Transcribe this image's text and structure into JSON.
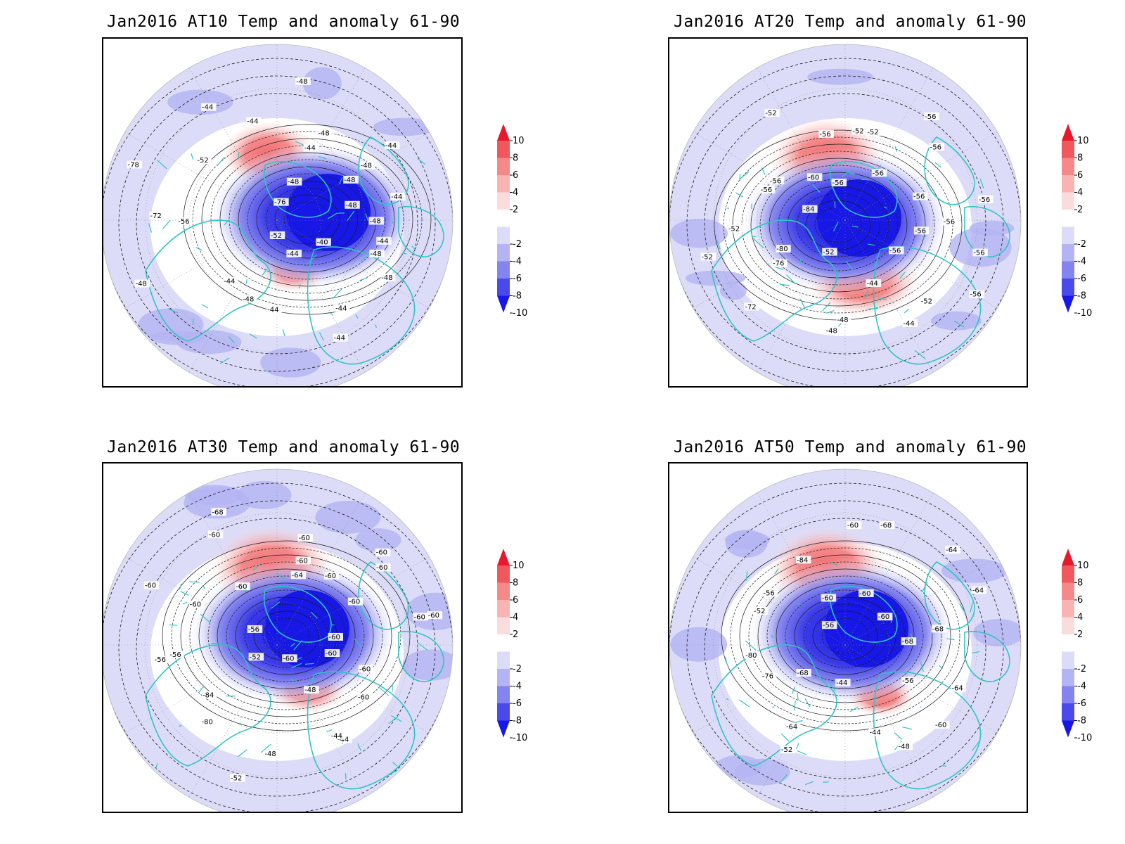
{
  "panels": [
    {
      "title": "Jan2016 AT10 Temp and anomaly 61-90",
      "contour_labels": [
        "-48",
        "-44",
        "-48",
        "-48",
        "-44",
        "-44",
        "-40",
        "-44",
        "-48",
        "-44",
        "-44",
        "-48",
        "-52",
        "-56",
        "-72",
        "-76",
        "-78",
        "-52",
        "-48",
        "-44",
        "-44",
        "-44",
        "-48",
        "-48",
        "-48",
        "-44",
        "-48",
        "-48",
        "-44"
      ]
    },
    {
      "title": "Jan2016 AT20 Temp and anomaly 61-90",
      "contour_labels": [
        "-56",
        "-56",
        "-56",
        "-56",
        "-52",
        "-44",
        "-44",
        "-48",
        "-48",
        "-52",
        "-72",
        "-76",
        "-80",
        "-52",
        "-52",
        "-84",
        "-56",
        "-56",
        "-60",
        "-52",
        "-56",
        "-56",
        "-52",
        "-52",
        "-56",
        "-56",
        "-56",
        "-56",
        "-56",
        "-56"
      ]
    },
    {
      "title": "Jan2016 AT30 Temp and anomaly 61-90",
      "contour_labels": [
        "-60",
        "-60",
        "-60",
        "-60",
        "-44",
        "-44",
        "-48",
        "-48",
        "-52",
        "-60",
        "-80",
        "-84",
        "-52",
        "-56",
        "-56",
        "-56",
        "-60",
        "-60",
        "-60",
        "-60",
        "-68",
        "-64",
        "-60",
        "-60",
        "-60",
        "-60",
        "-60",
        "-60",
        "-60",
        "-60"
      ]
    },
    {
      "title": "Jan2016 AT50 Temp and anomaly 61-90",
      "contour_labels": [
        "-68",
        "-64",
        "-60",
        "-56",
        "-48",
        "-44",
        "-44",
        "-52",
        "-64",
        "-68",
        "-76",
        "-80",
        "-56",
        "-52",
        "-56",
        "-60",
        "-84",
        "-60",
        "-60",
        "-68",
        "-64",
        "-60",
        "-64",
        "-68"
      ]
    }
  ],
  "colorbar": {
    "labels": [
      "10",
      "8",
      "6",
      "4",
      "2",
      "-2",
      "-4",
      "-6",
      "-8",
      "-10"
    ],
    "colors": [
      "#e8192c",
      "#f0585e",
      "#f5898a",
      "#f9b3b3",
      "#fbdcdc",
      "#ffffff",
      "#dcdcf8",
      "#b4b4f4",
      "#8484f0",
      "#4a4aec",
      "#1818e6"
    ]
  },
  "colors": {
    "coastline": "#2fc4c4",
    "contour": "#1a1a1a",
    "light_blue": "#dcdcf8",
    "mid_blue": "#b4b4f4",
    "deep_blue": "#1818e6",
    "light_red": "#fbdcdc",
    "mid_red": "#f5898a"
  }
}
